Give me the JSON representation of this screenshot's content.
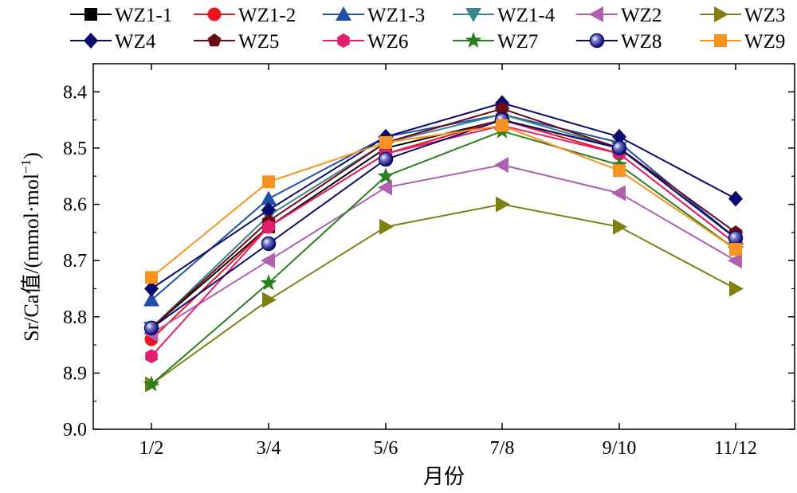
{
  "chart_data": {
    "type": "line",
    "xlabel": "月份",
    "ylabel_main": "Sr/Ca值/(mmol·mol",
    "ylabel_sup": "−1",
    "ylabel_close": ")",
    "categories": [
      "1/2",
      "3/4",
      "5/6",
      "7/8",
      "9/10",
      "11/12"
    ],
    "ylim": [
      8.35,
      9.0
    ],
    "y_inverted": true,
    "yticks": [
      "8.4",
      "8.5",
      "8.6",
      "8.7",
      "8.8",
      "8.9",
      "9.0"
    ],
    "ytick_values": [
      8.4,
      8.5,
      8.6,
      8.7,
      8.8,
      8.9,
      9.0
    ],
    "legend_position": "top",
    "series": [
      {
        "name": "WZ1-1",
        "color": "#000000",
        "marker": "square",
        "values": [
          8.82,
          8.64,
          8.5,
          8.45,
          8.5,
          8.66
        ]
      },
      {
        "name": "WZ1-2",
        "color": "#e8141e",
        "marker": "circle",
        "values": [
          8.84,
          8.64,
          8.51,
          8.45,
          8.51,
          8.67
        ]
      },
      {
        "name": "WZ1-3",
        "color": "#1f4fa8",
        "marker": "triangle-up",
        "values": [
          8.77,
          8.59,
          8.48,
          8.44,
          8.49,
          8.66
        ]
      },
      {
        "name": "WZ1-4",
        "color": "#3e8390",
        "marker": "triangle-down",
        "values": [
          8.82,
          8.62,
          8.49,
          8.44,
          8.5,
          8.66
        ]
      },
      {
        "name": "WZ2",
        "color": "#b060b0",
        "marker": "triangle-left",
        "values": [
          8.83,
          8.7,
          8.57,
          8.53,
          8.58,
          8.7
        ]
      },
      {
        "name": "WZ3",
        "color": "#808010",
        "marker": "triangle-right",
        "values": [
          8.92,
          8.77,
          8.64,
          8.6,
          8.64,
          8.75
        ]
      },
      {
        "name": "WZ4",
        "color": "#0a0a6e",
        "marker": "diamond",
        "values": [
          8.75,
          8.61,
          8.48,
          8.42,
          8.48,
          8.59
        ]
      },
      {
        "name": "WZ5",
        "color": "#6b0a14",
        "marker": "pentagon",
        "values": [
          8.82,
          8.63,
          8.49,
          8.43,
          8.5,
          8.65
        ]
      },
      {
        "name": "WZ6",
        "color": "#e0206e",
        "marker": "hexagon",
        "values": [
          8.87,
          8.64,
          8.51,
          8.46,
          8.51,
          8.67
        ]
      },
      {
        "name": "WZ7",
        "color": "#2a7f1e",
        "marker": "star",
        "values": [
          8.92,
          8.74,
          8.55,
          8.47,
          8.53,
          8.68
        ]
      },
      {
        "name": "WZ8",
        "color": "#0b0b6b",
        "marker": "sphere",
        "values": [
          8.82,
          8.67,
          8.52,
          8.45,
          8.5,
          8.66
        ]
      },
      {
        "name": "WZ9",
        "color": "#f7931e",
        "marker": "square",
        "values": [
          8.73,
          8.56,
          8.49,
          8.46,
          8.54,
          8.68
        ]
      }
    ]
  }
}
